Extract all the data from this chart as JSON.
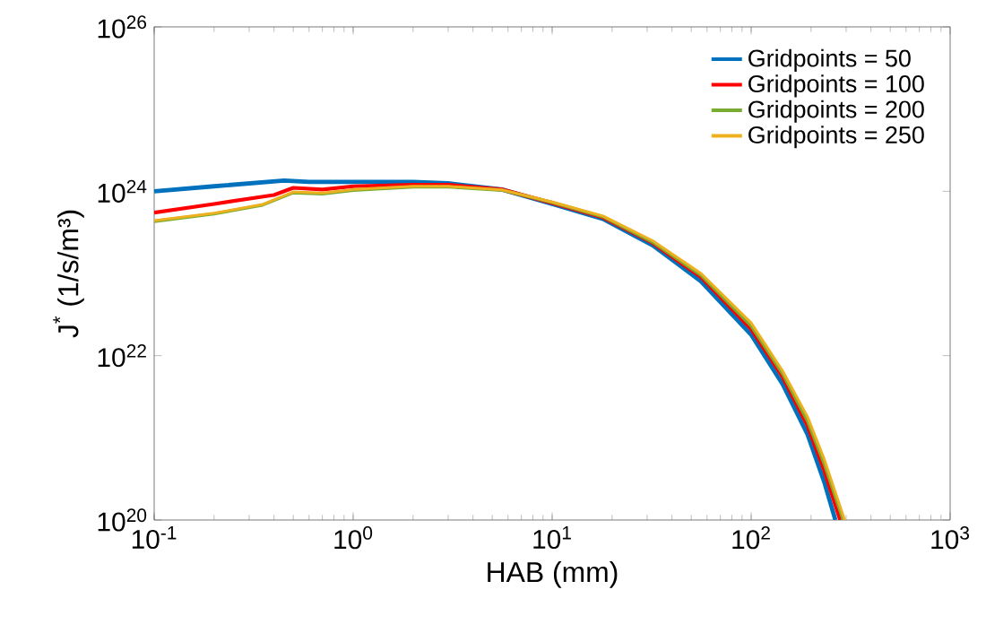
{
  "chart_data": {
    "type": "line",
    "xlabel": "HAB (mm)",
    "ylabel": "J$^{*}$ (1/s/m³)",
    "log": "xy",
    "xlim": [
      0.1,
      1000
    ],
    "ylim": [
      1e+20,
      1e+26
    ],
    "xticks": [
      {
        "value": 0.1,
        "label": "10$^{-1}$"
      },
      {
        "value": 1,
        "label": "10$^{0}$"
      },
      {
        "value": 10,
        "label": "10$^{1}$"
      },
      {
        "value": 100,
        "label": "10$^{2}$"
      },
      {
        "value": 1000,
        "label": "10$^{3}$"
      }
    ],
    "yticks": [
      {
        "value": 1e+20,
        "label": "10$^{20}$"
      },
      {
        "value": 1e+22,
        "label": "10$^{22}$"
      },
      {
        "value": 1e+24,
        "label": "10$^{24}$"
      },
      {
        "value": 1e+26,
        "label": "10$^{26}$"
      }
    ],
    "grid": false,
    "legend": "top right",
    "marker": "none",
    "line_style": "solid",
    "series": [
      {
        "name": "Gridpoints = 50",
        "color": "#0072bd",
        "x": [
          0.1,
          0.2,
          0.45,
          0.6,
          1,
          2,
          3,
          5.6,
          10,
          18,
          32,
          56,
          100,
          144,
          192,
          233,
          265
        ],
        "values": [
          1e+24,
          1.15e+24,
          1.35e+24,
          1.3e+24,
          1.3e+24,
          1.3e+24,
          1.25e+24,
          1.05e+24,
          7e+23,
          4.6e+23,
          2.2e+23,
          8e+22,
          1.8e+22,
          4.5e+21,
          1.1e+21,
          2.9e+20,
          1e+20
        ]
      },
      {
        "name": "Gridpoints = 100",
        "color": "#ff0000",
        "x": [
          0.1,
          0.2,
          0.4,
          0.5,
          0.7,
          1,
          2,
          3,
          5.6,
          10,
          18,
          32,
          56,
          100,
          144,
          192,
          233,
          280
        ],
        "values": [
          5.5e+23,
          7e+23,
          9e+23,
          1.1e+24,
          1.05e+24,
          1.15e+24,
          1.2e+24,
          1.2e+24,
          1.05e+24,
          7.2e+23,
          4.8e+23,
          2.35e+23,
          9e+22,
          2.1e+22,
          5.5e+21,
          1.4e+21,
          4e+20,
          1e+20
        ]
      },
      {
        "name": "Gridpoints = 200",
        "color": "#77ac30",
        "x": [
          0.1,
          0.2,
          0.35,
          0.5,
          0.7,
          1,
          2,
          3,
          5.6,
          10,
          18,
          32,
          56,
          100,
          144,
          192,
          233,
          290
        ],
        "values": [
          4.3e+23,
          5.3e+23,
          6.8e+23,
          9.6e+23,
          9.3e+23,
          1.03e+24,
          1.13e+24,
          1.13e+24,
          1.03e+24,
          7.3e+23,
          4.9e+23,
          2.4e+23,
          9.5e+22,
          2.3e+22,
          6e+21,
          1.6e+21,
          4.8e+20,
          1e+20
        ]
      },
      {
        "name": "Gridpoints = 250",
        "color": "#edb120",
        "x": [
          0.1,
          0.2,
          0.35,
          0.5,
          0.7,
          1,
          2,
          3,
          5.6,
          10,
          18,
          32,
          56,
          100,
          144,
          192,
          233,
          295
        ],
        "values": [
          4.4e+23,
          5.4e+23,
          6.9e+23,
          9.8e+23,
          9.5e+23,
          1.05e+24,
          1.15e+24,
          1.15e+24,
          1.04e+24,
          7.4e+23,
          5e+23,
          2.5e+23,
          1e+23,
          2.5e+22,
          6.5e+21,
          1.8e+21,
          5.5e+20,
          1e+20
        ]
      }
    ]
  }
}
